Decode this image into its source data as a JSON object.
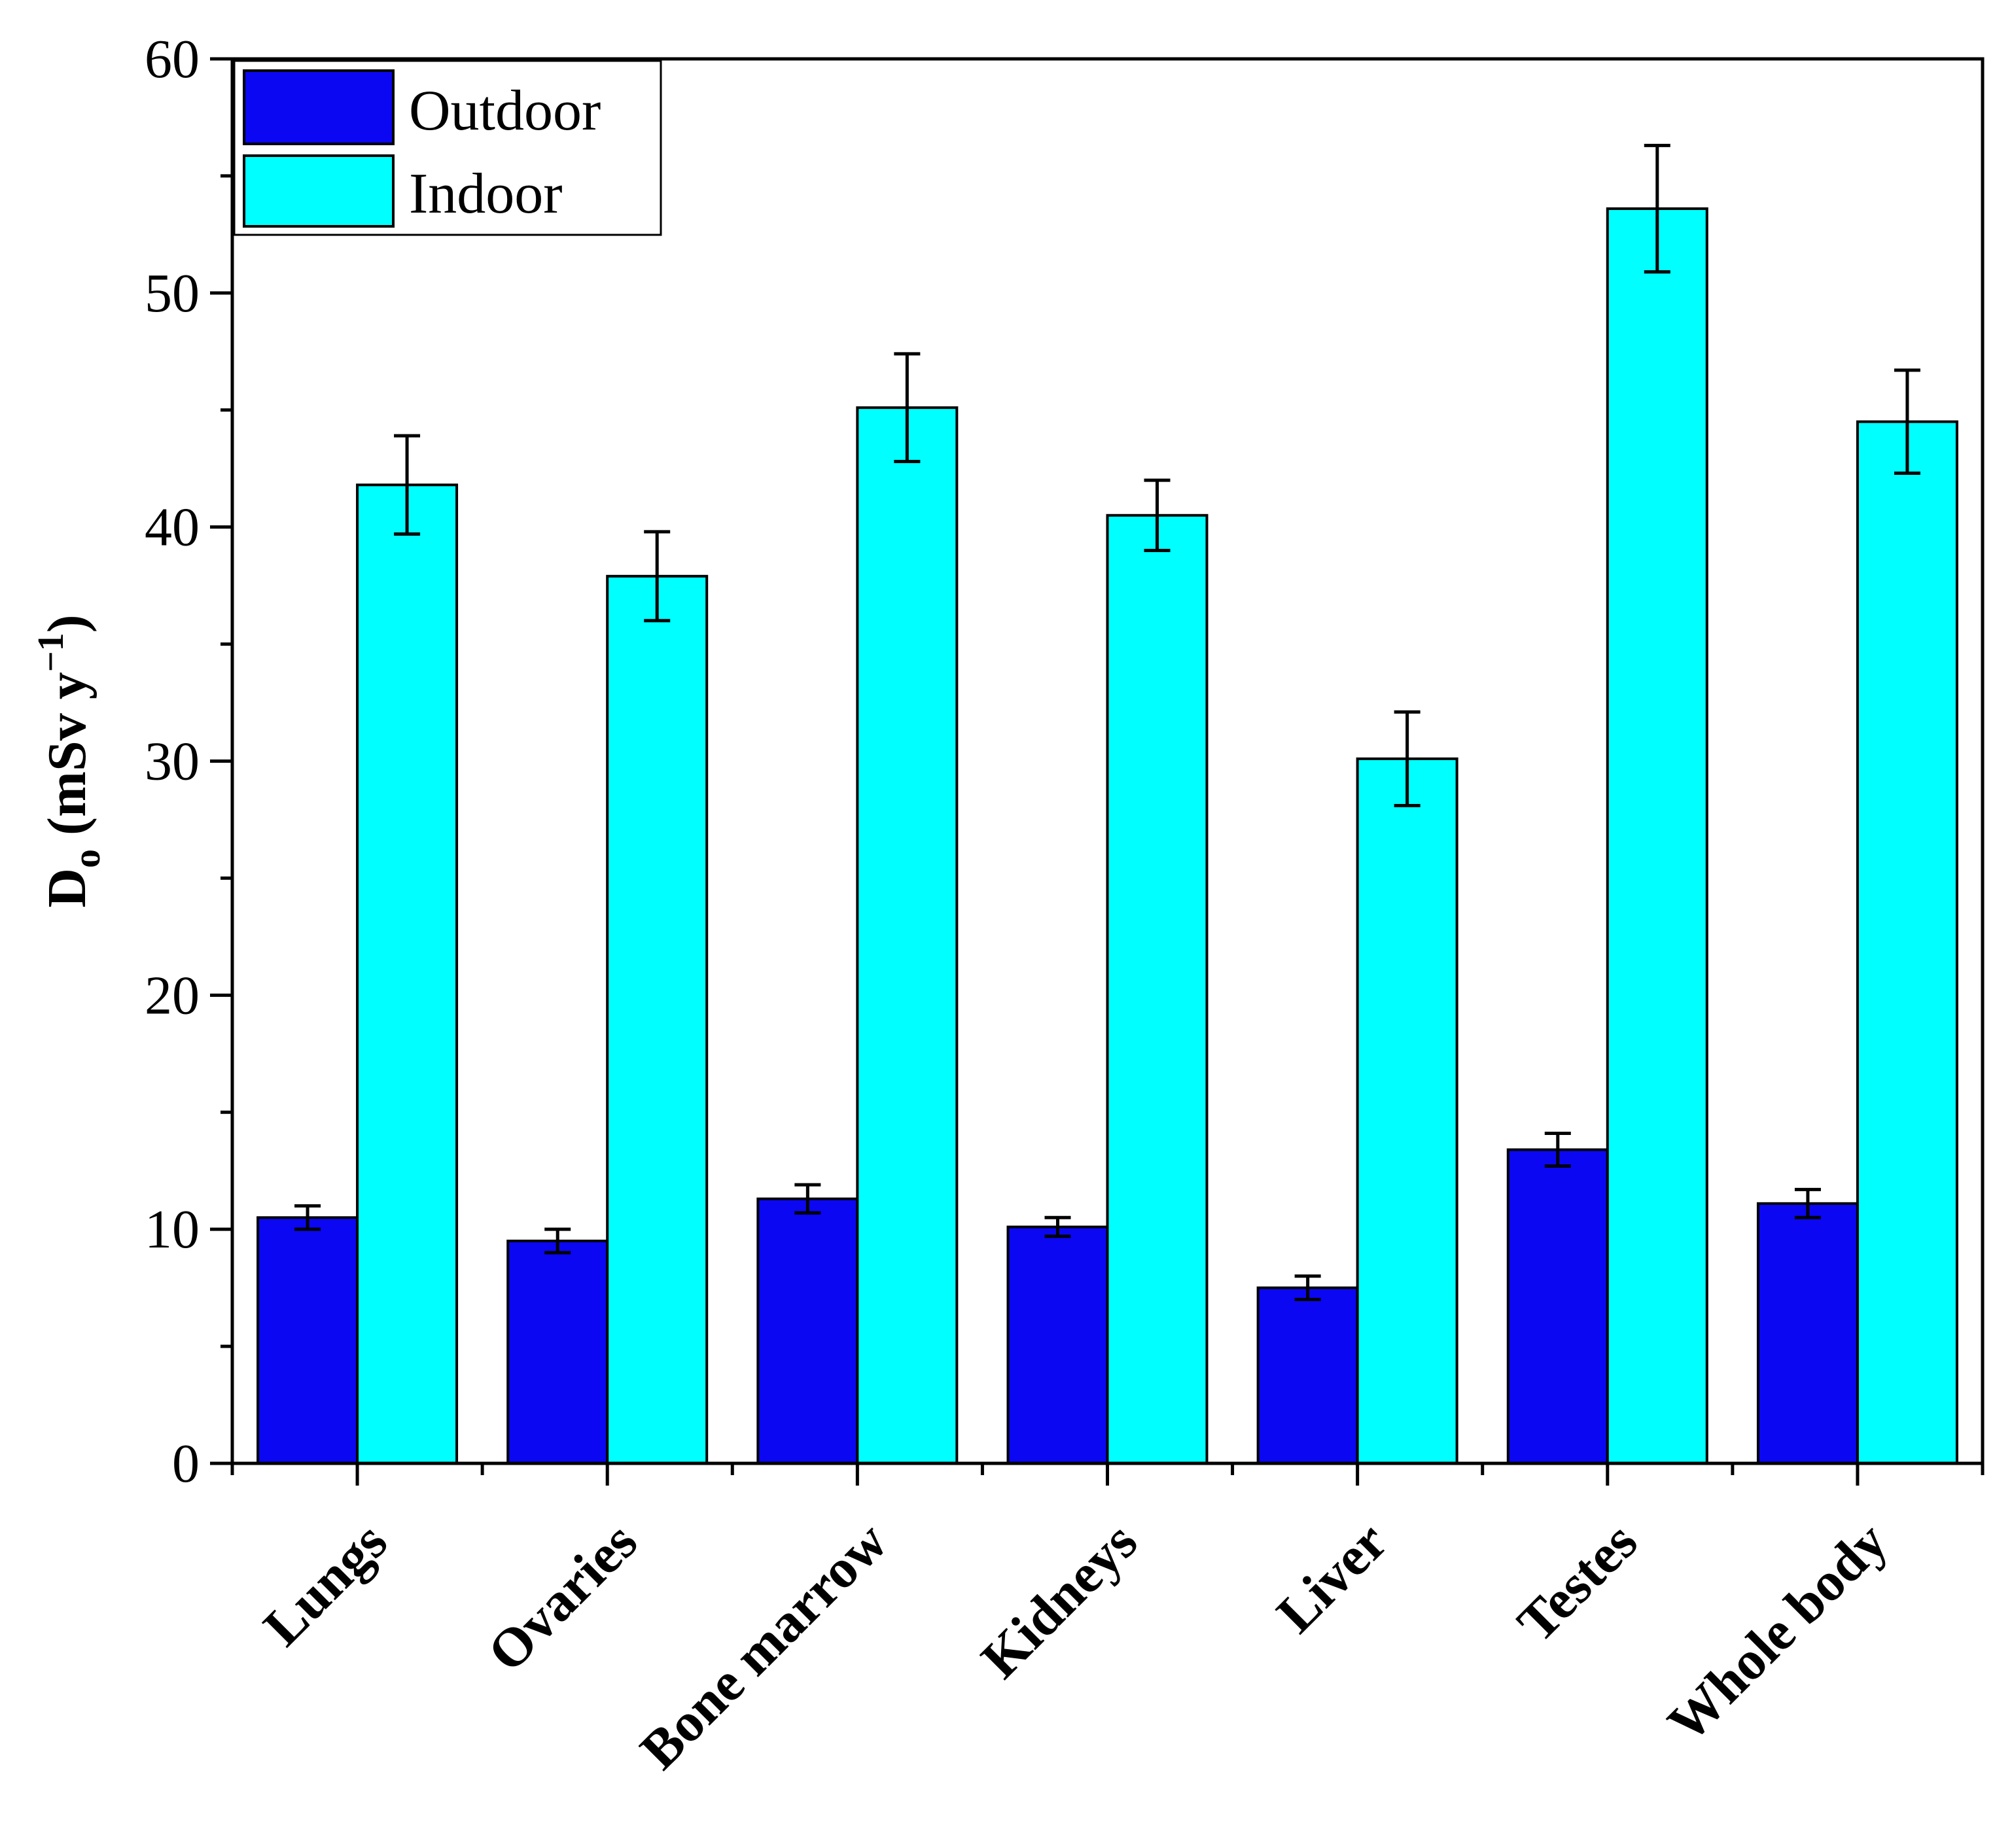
{
  "chart_data": {
    "type": "bar",
    "categories": [
      "Lungs",
      "Ovaries",
      "Bone marrow",
      "Kidneys",
      "Liver",
      "Testes",
      "Whole body"
    ],
    "series": [
      {
        "name": "Outdoor",
        "color": "#0b07f2",
        "values": [
          10.5,
          9.5,
          11.3,
          10.1,
          7.5,
          13.4,
          11.1
        ],
        "errors": [
          0.5,
          0.5,
          0.6,
          0.4,
          0.5,
          0.7,
          0.6
        ]
      },
      {
        "name": "Indoor",
        "color": "#00ffff",
        "values": [
          41.8,
          37.9,
          45.1,
          40.5,
          30.1,
          53.6,
          44.5
        ],
        "errors": [
          2.1,
          1.9,
          2.3,
          1.5,
          2.0,
          2.7,
          2.2
        ]
      }
    ],
    "title": "",
    "xlabel": "",
    "ylabel": {
      "main": "D",
      "subscript": "o",
      "units_open": " (mSv y",
      "superscript": "−1",
      "units_close": ")"
    },
    "ylim": [
      0,
      60
    ],
    "yticks": [
      0,
      10,
      20,
      30,
      40,
      50,
      60
    ],
    "ytick_labels": [
      "0",
      "10",
      "20",
      "30",
      "40",
      "50",
      "60"
    ],
    "grid": false,
    "legend_position": "top-left"
  }
}
